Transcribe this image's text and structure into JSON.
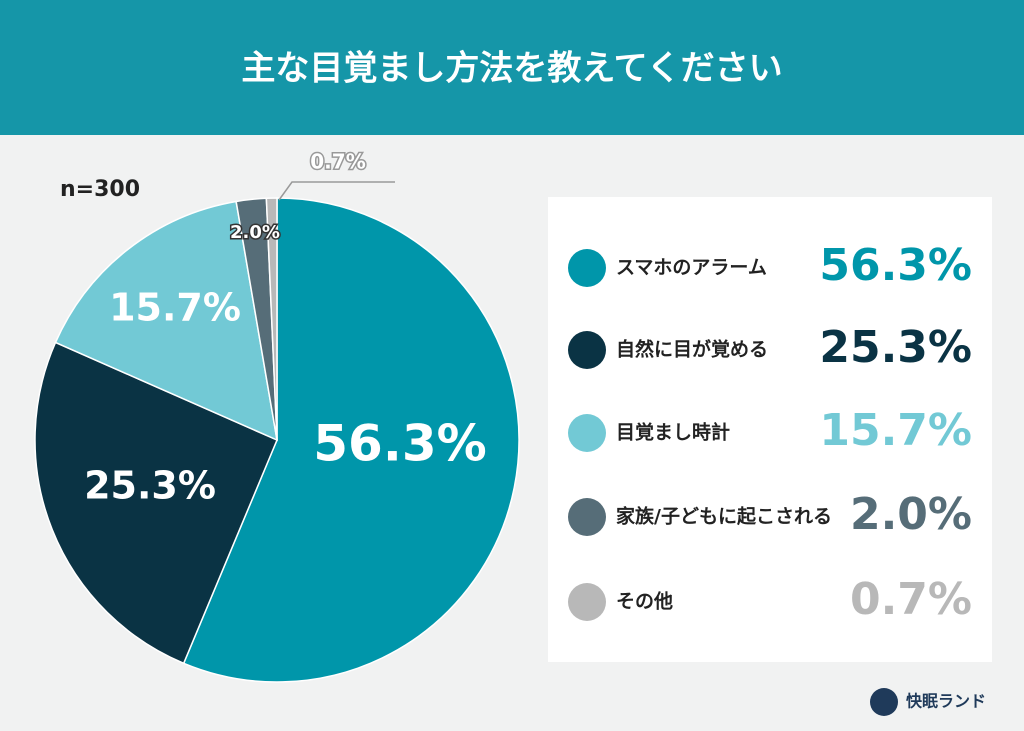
{
  "chart_data": {
    "type": "pie",
    "title": "主な目覚まし方法を教えてください",
    "annotation": "n=300",
    "categories": [
      "スマホのアラーム",
      "自然に目が覚める",
      "目覚まし時計",
      "家族/子どもに起こされる",
      "その他"
    ],
    "values": [
      56.3,
      25.3,
      15.7,
      2.0,
      0.7
    ],
    "value_labels": [
      "56.3%",
      "25.3%",
      "15.7%",
      "2.0%",
      "0.7%"
    ],
    "colors": [
      "#0096aa",
      "#0a3344",
      "#72c9d5",
      "#566d78",
      "#b8b8b8"
    ]
  },
  "brand": "快眠ランド"
}
